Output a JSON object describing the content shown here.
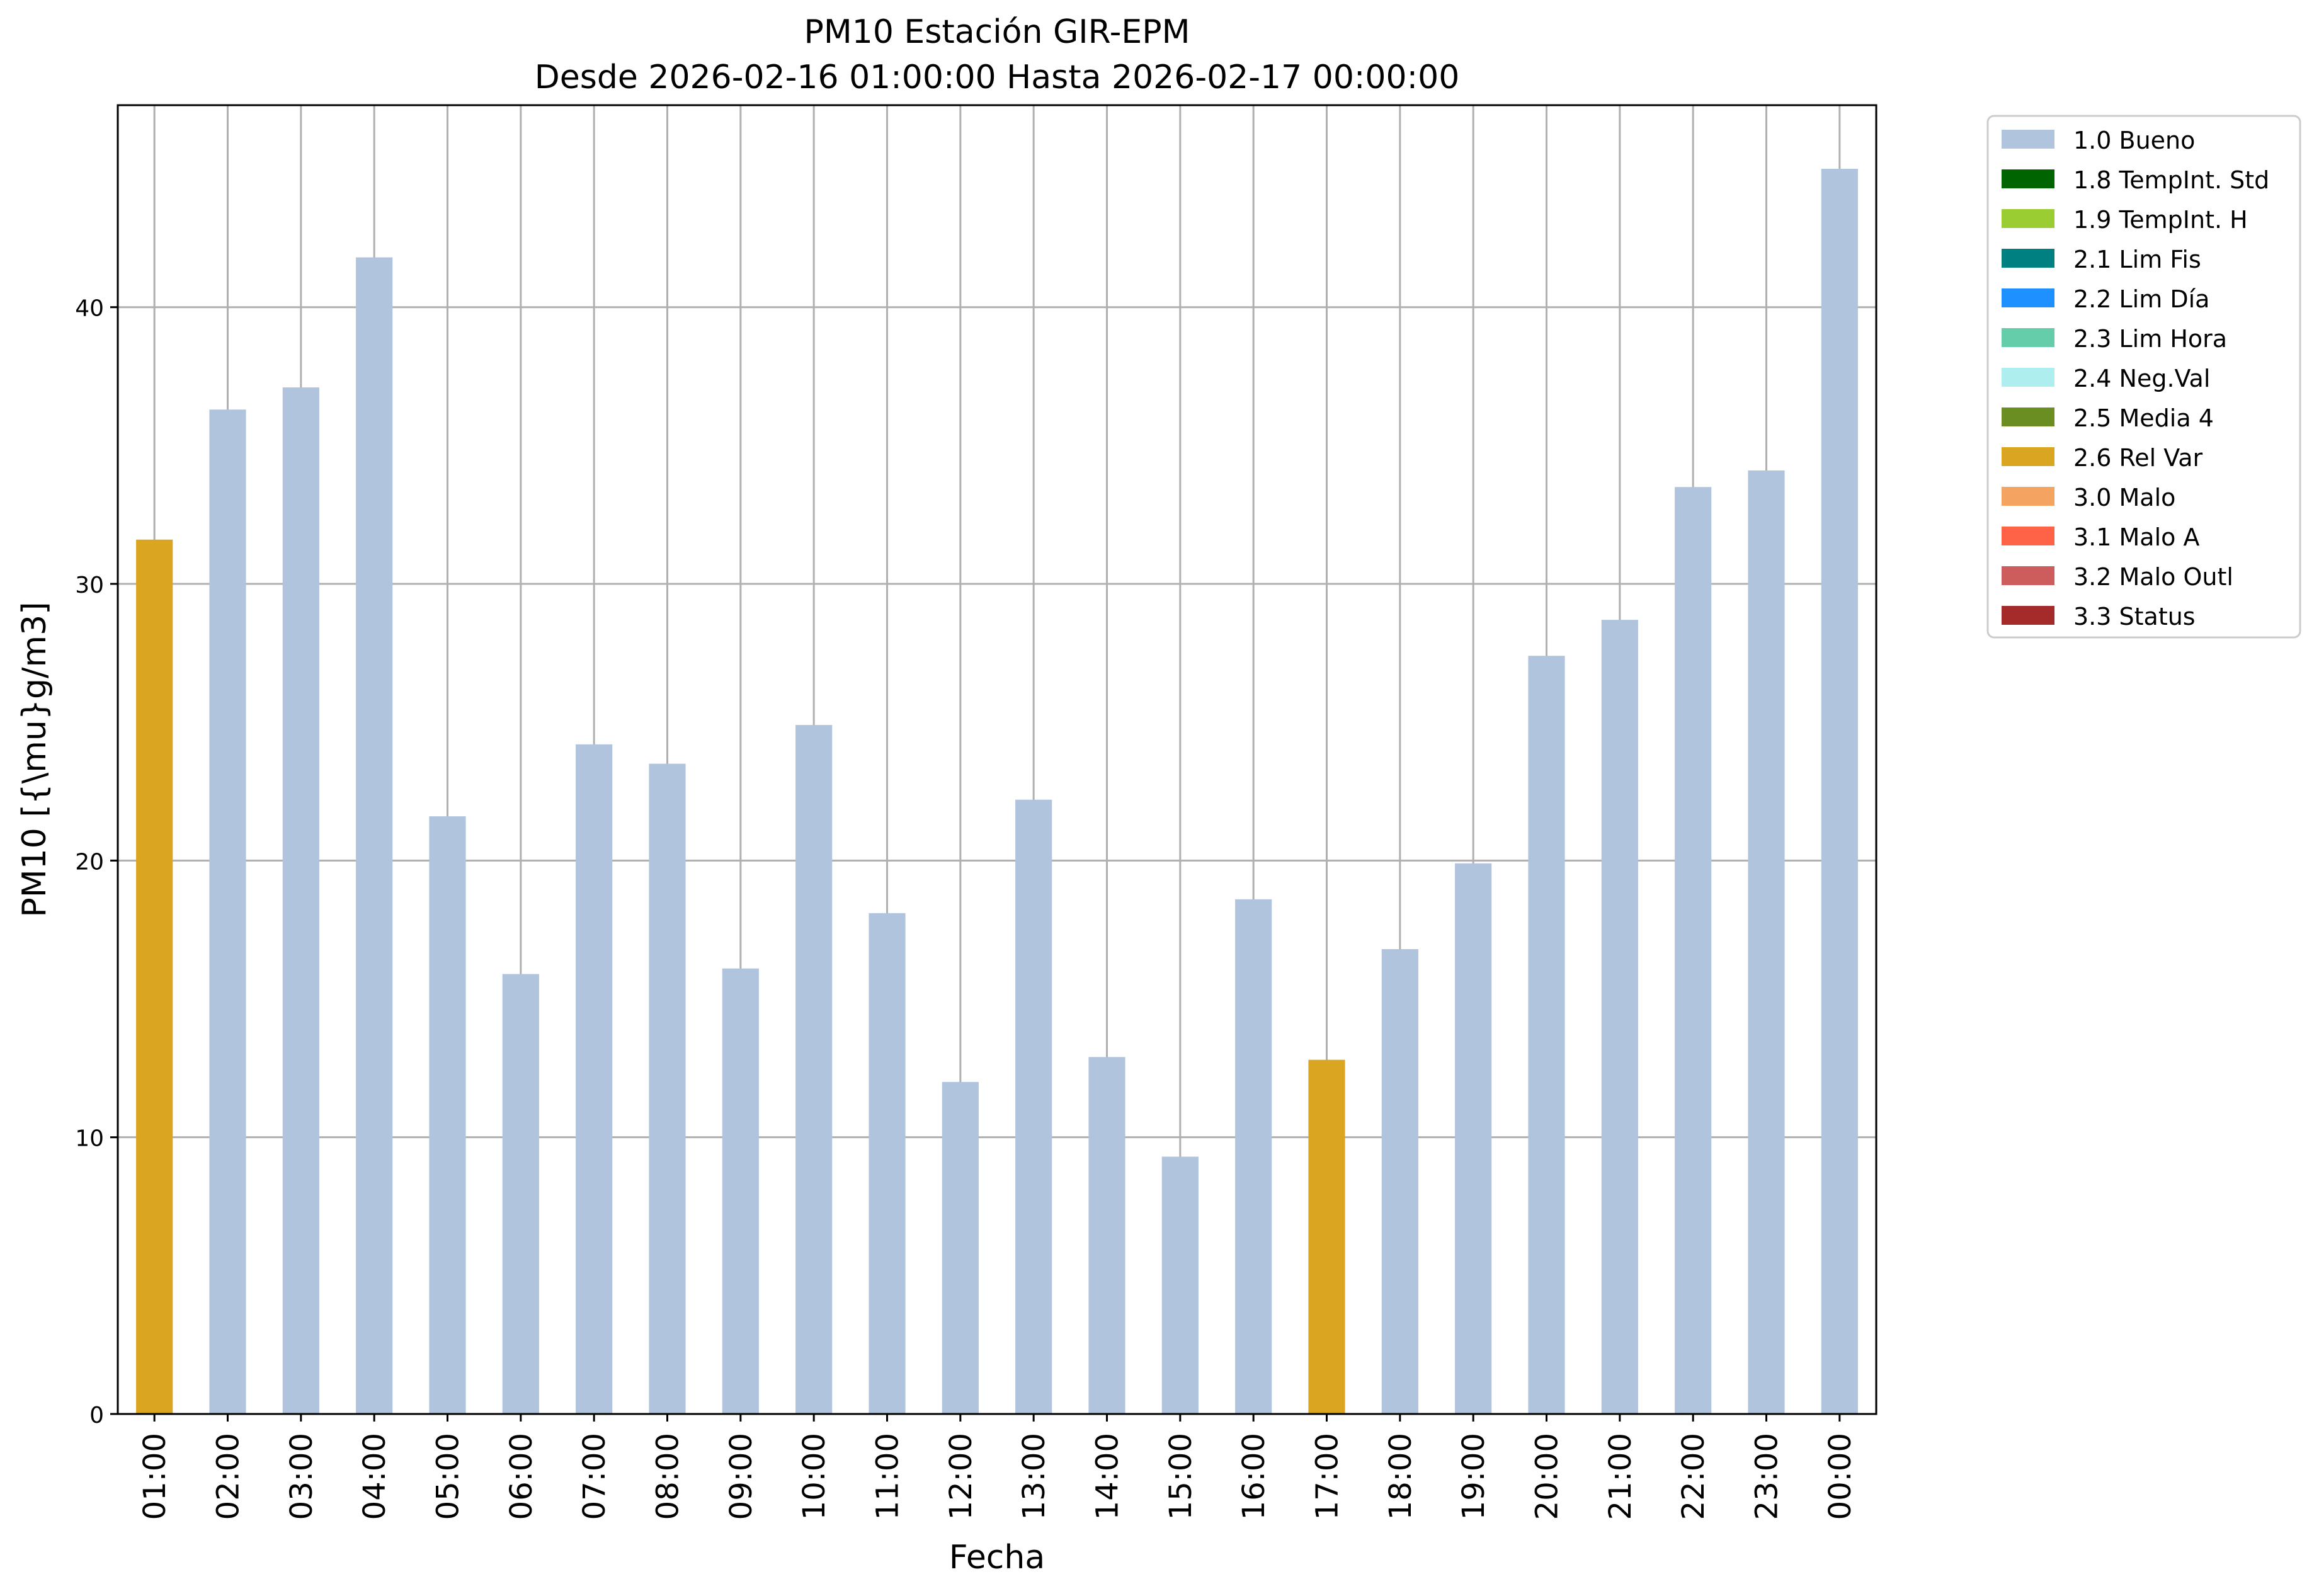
{
  "chart_data": {
    "type": "bar",
    "title": "PM10 Estación GIR-EPM",
    "subtitle": "Desde 2026-02-16 01:00:00 Hasta 2026-02-17 00:00:00",
    "xlabel": "Fecha",
    "ylabel": "PM10 [{\\mu}g/m3]",
    "ylim": [
      0,
      47.3
    ],
    "yticks": [
      0,
      10,
      20,
      30,
      40
    ],
    "grid": true,
    "legend_position": "outside-top-right",
    "categories": [
      "01:00",
      "02:00",
      "03:00",
      "04:00",
      "05:00",
      "06:00",
      "07:00",
      "08:00",
      "09:00",
      "10:00",
      "11:00",
      "12:00",
      "13:00",
      "14:00",
      "15:00",
      "16:00",
      "17:00",
      "18:00",
      "19:00",
      "20:00",
      "21:00",
      "22:00",
      "23:00",
      "00:00"
    ],
    "values": [
      31.6,
      36.3,
      37.1,
      41.8,
      21.6,
      15.9,
      24.2,
      23.5,
      16.1,
      24.9,
      18.1,
      12.0,
      22.2,
      12.9,
      9.3,
      18.6,
      12.8,
      16.8,
      19.9,
      27.4,
      28.7,
      33.5,
      34.1,
      45.0
    ],
    "flags": [
      "2.6 Rel Var",
      "1.0 Bueno",
      "1.0 Bueno",
      "1.0 Bueno",
      "1.0 Bueno",
      "1.0 Bueno",
      "1.0 Bueno",
      "1.0 Bueno",
      "1.0 Bueno",
      "1.0 Bueno",
      "1.0 Bueno",
      "1.0 Bueno",
      "1.0 Bueno",
      "1.0 Bueno",
      "1.0 Bueno",
      "1.0 Bueno",
      "2.6 Rel Var",
      "1.0 Bueno",
      "1.0 Bueno",
      "1.0 Bueno",
      "1.0 Bueno",
      "1.0 Bueno",
      "1.0 Bueno",
      "1.0 Bueno"
    ],
    "legend": [
      {
        "label": "1.0 Bueno",
        "color": "#b0c4de"
      },
      {
        "label": "1.8 TempInt. Std",
        "color": "#006400"
      },
      {
        "label": "1.9 TempInt. H",
        "color": "#9acd32"
      },
      {
        "label": "2.1 Lim Fis",
        "color": "#008080"
      },
      {
        "label": "2.2 Lim Día",
        "color": "#1e90ff"
      },
      {
        "label": "2.3 Lim Hora",
        "color": "#66cdaa"
      },
      {
        "label": "2.4 Neg.Val",
        "color": "#afeeee"
      },
      {
        "label": "2.5 Media 4",
        "color": "#6b8e23"
      },
      {
        "label": "2.6 Rel Var",
        "color": "#daa520"
      },
      {
        "label": "3.0 Malo",
        "color": "#f4a460"
      },
      {
        "label": "3.1 Malo A",
        "color": "#ff6347"
      },
      {
        "label": "3.2 Malo Outl",
        "color": "#cd5c5c"
      },
      {
        "label": "3.3 Status",
        "color": "#a52a2a"
      }
    ]
  }
}
